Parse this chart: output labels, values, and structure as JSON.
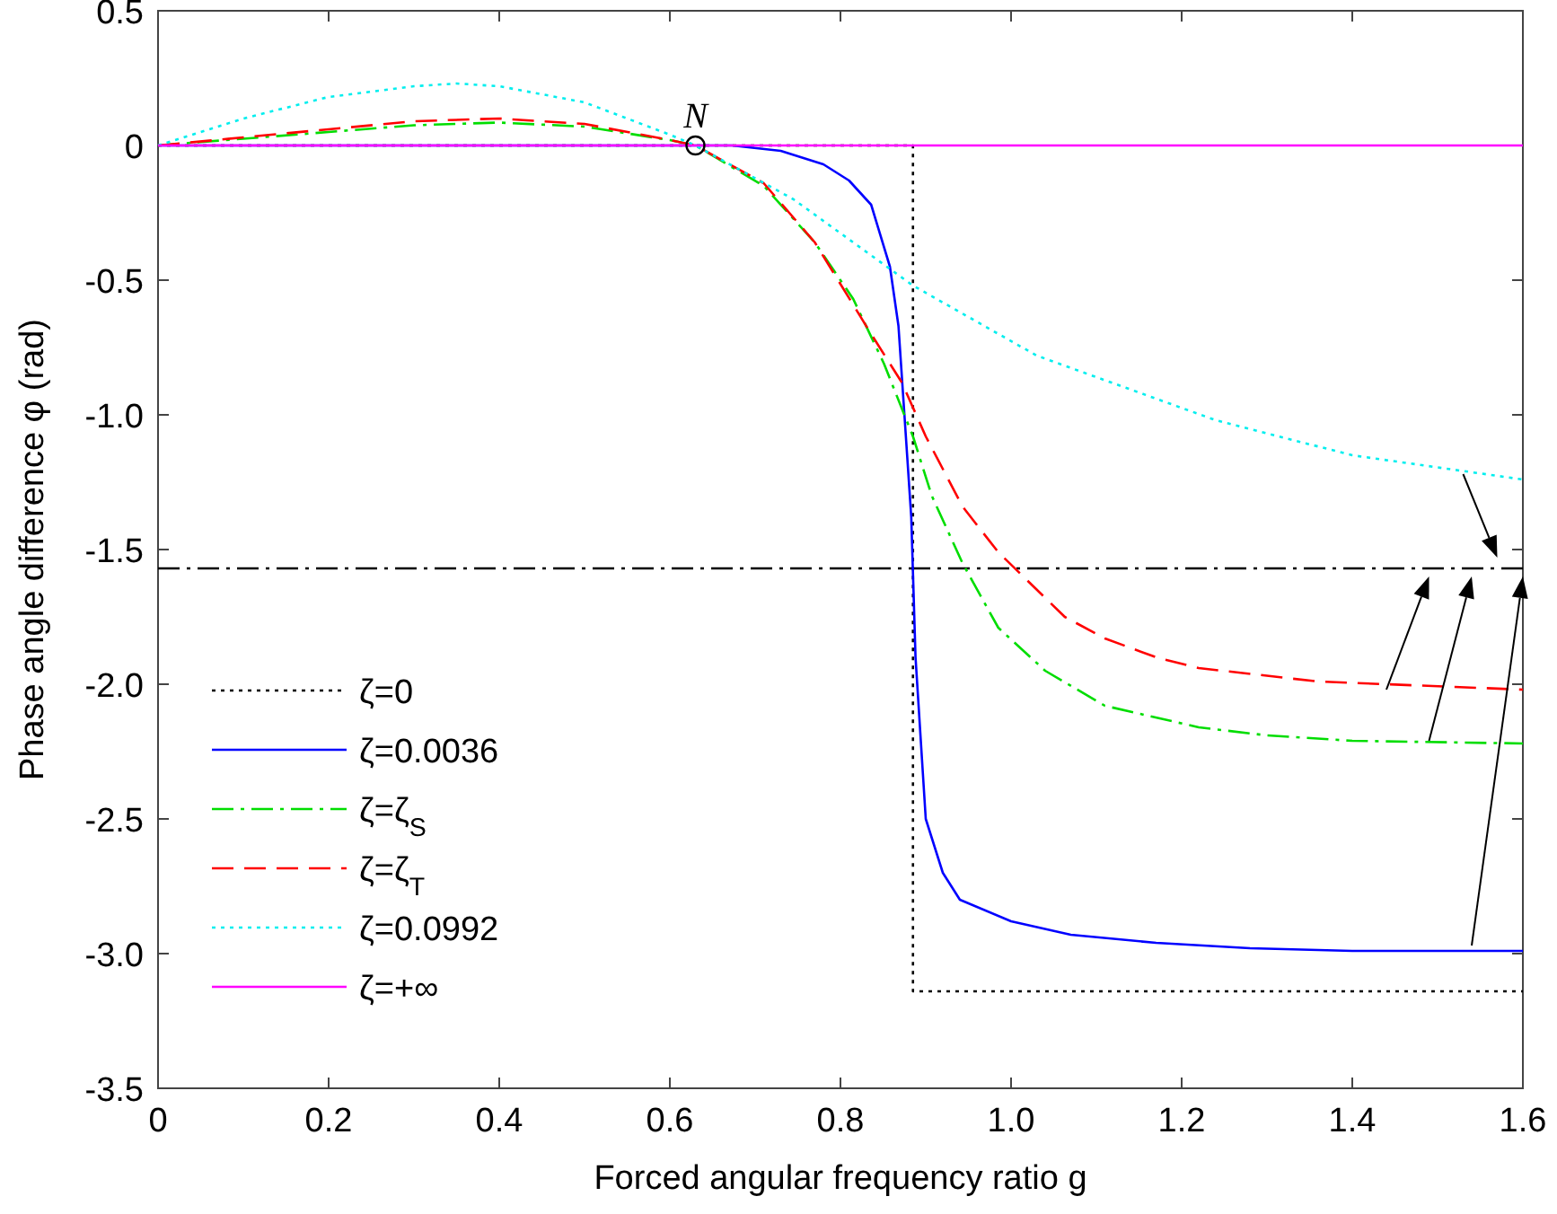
{
  "chart_data": {
    "type": "line",
    "xlabel": "Forced angular frequency ratio g",
    "ylabel": "Phase angle difference φ (rad)",
    "xlim": [
      0,
      1.6
    ],
    "ylim": [
      -3.5,
      0.5
    ],
    "xticks": [
      0,
      0.2,
      0.4,
      0.6,
      0.8,
      {
        "value": 1,
        "label": "1.0"
      },
      1.2,
      1.4,
      1.6
    ],
    "yticks": [
      0.5,
      0,
      -0.5,
      {
        "value": -1,
        "label": "-1.0"
      },
      -1.5,
      {
        "value": -2,
        "label": "-2.0"
      },
      -2.5,
      {
        "value": -3,
        "label": "-3.0"
      },
      -3.5
    ],
    "grid": false,
    "legend": "bottom left",
    "marker": "none",
    "annotations": [
      {
        "text": "N",
        "x": 0.63,
        "y": 0
      }
    ],
    "ref_lines": [
      {
        "axis": "y",
        "value": -1.57,
        "color": "#000000",
        "line_style": "dashdot"
      }
    ],
    "series": [
      {
        "name": "ζ=0",
        "color": "#000000",
        "line_style": "dotted",
        "x": [
          0,
          0.885,
          0.885,
          1.6
        ],
        "values": [
          0,
          0,
          -3.14,
          -3.14
        ]
      },
      {
        "name": "ζ=0.0036",
        "color": "#0000ff",
        "line_style": "solid",
        "x": [
          0,
          0.6,
          0.673,
          0.73,
          0.78,
          0.81,
          0.836,
          0.858,
          0.868,
          0.875,
          0.883,
          0.888,
          0.9,
          0.92,
          0.94,
          1.0,
          1.07,
          1.17,
          1.28,
          1.4,
          1.6
        ],
        "values": [
          0,
          0,
          0,
          -0.02,
          -0.07,
          -0.13,
          -0.22,
          -0.45,
          -0.67,
          -1.0,
          -1.38,
          -1.9,
          -2.5,
          -2.7,
          -2.8,
          -2.88,
          -2.93,
          -2.96,
          -2.98,
          -2.99,
          -2.99
        ]
      },
      {
        "name": "ζ=ζ$_{S}$",
        "color": "#00dd00",
        "line_style": "dashdot",
        "x": [
          0,
          0.1,
          0.2,
          0.3,
          0.4,
          0.5,
          0.6,
          0.63,
          0.71,
          0.77,
          0.815,
          0.851,
          0.885,
          0.907,
          0.943,
          0.985,
          1.04,
          1.11,
          1.22,
          1.3,
          1.4,
          1.6
        ],
        "values": [
          0,
          0.025,
          0.05,
          0.075,
          0.085,
          0.07,
          0.02,
          0,
          -0.15,
          -0.36,
          -0.57,
          -0.81,
          -1.08,
          -1.3,
          -1.55,
          -1.79,
          -1.95,
          -2.08,
          -2.16,
          -2.19,
          -2.21,
          -2.22
        ]
      },
      {
        "name": "ζ=ζ$_{T}$",
        "color": "#ff0000",
        "line_style": "dashed",
        "x": [
          0,
          0.1,
          0.2,
          0.3,
          0.4,
          0.5,
          0.6,
          0.63,
          0.71,
          0.77,
          0.836,
          0.872,
          0.9,
          0.943,
          0.985,
          1.063,
          1.11,
          1.17,
          1.22,
          1.36,
          1.6
        ],
        "values": [
          0,
          0.03,
          0.06,
          0.09,
          0.1,
          0.08,
          0.02,
          0,
          -0.14,
          -0.36,
          -0.7,
          -0.88,
          -1.08,
          -1.34,
          -1.51,
          -1.75,
          -1.83,
          -1.9,
          -1.94,
          -1.99,
          -2.02
        ]
      },
      {
        "name": "ζ=0.0992",
        "color": "#00eeee",
        "line_style": "dotted",
        "x": [
          0,
          0.1,
          0.2,
          0.3,
          0.35,
          0.4,
          0.5,
          0.6,
          0.63,
          0.745,
          0.885,
          1.03,
          1.24,
          1.4,
          1.6
        ],
        "values": [
          0,
          0.1,
          0.18,
          0.22,
          0.23,
          0.22,
          0.16,
          0.04,
          0,
          -0.2,
          -0.52,
          -0.78,
          -1.02,
          -1.15,
          -1.24
        ]
      },
      {
        "name": "ζ=+∞",
        "color": "#ff00ff",
        "line_style": "solid",
        "x": [
          0,
          1.6
        ],
        "values": [
          0,
          0
        ]
      }
    ]
  }
}
